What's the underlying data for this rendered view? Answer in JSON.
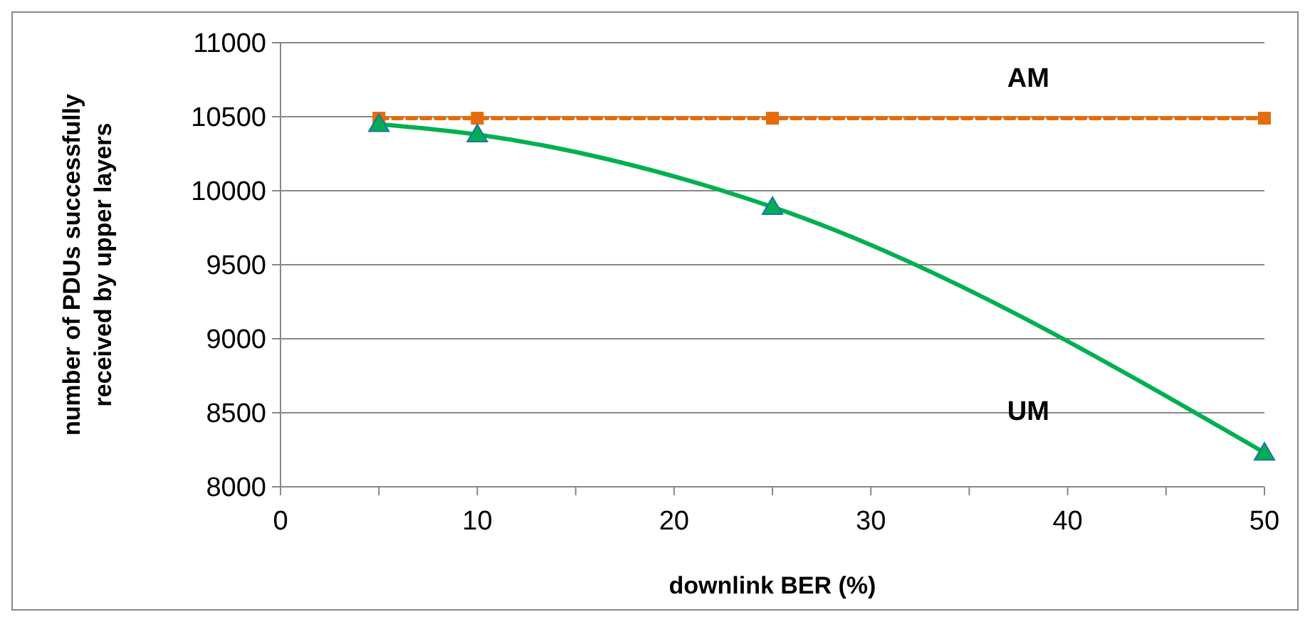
{
  "chart_data": {
    "type": "line",
    "xlabel": "downlink BER (%)",
    "ylabel": "number of PDUs successfully received by upper layers",
    "xlim": [
      0,
      50
    ],
    "xticks": [
      0,
      {
        "value": 5,
        "label": null
      },
      10,
      {
        "value": 15,
        "label": null
      },
      20,
      {
        "value": 25,
        "label": null
      },
      30,
      {
        "value": 35,
        "label": null
      },
      40,
      {
        "value": 45,
        "label": null
      },
      50
    ],
    "ylim": [
      8000,
      11000
    ],
    "yticks": [
      8000,
      8500,
      9000,
      9500,
      10000,
      10500,
      11000
    ],
    "grid": "y",
    "series": [
      {
        "name": "AM",
        "color": "#e46c0a",
        "x": [
          5,
          10,
          25,
          50
        ],
        "values": [
          10490,
          10490,
          10490,
          10490
        ],
        "marker": "square",
        "line_style": "dashed"
      },
      {
        "name": "UM",
        "color": "#00b050",
        "x": [
          5,
          10,
          25,
          50
        ],
        "values": [
          10450,
          10380,
          9890,
          8230
        ],
        "marker": "triangle",
        "line_style": "solid"
      }
    ]
  }
}
